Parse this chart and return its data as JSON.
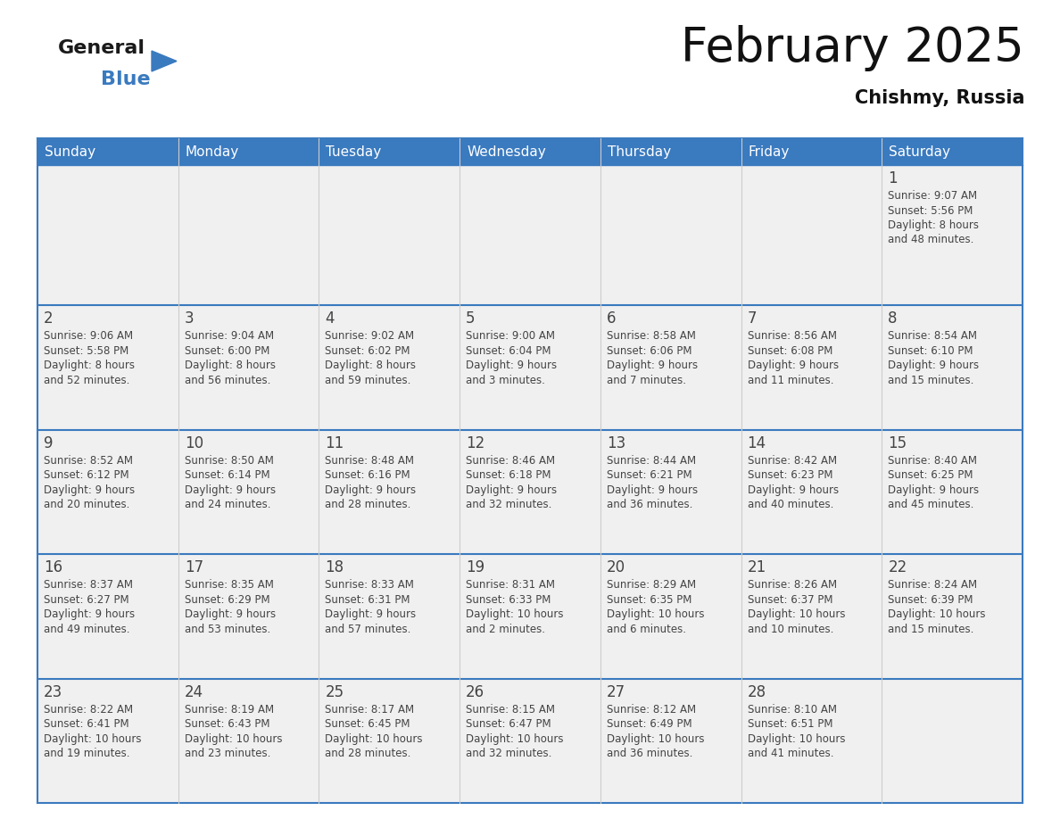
{
  "title": "February 2025",
  "subtitle": "Chishmy, Russia",
  "header_color": "#3a7abf",
  "header_text_color": "#ffffff",
  "cell_bg_color": "#f2f2f2",
  "cell_alt_bg": "#ffffff",
  "text_color": "#333333",
  "border_color": "#3a7abf",
  "days_of_week": [
    "Sunday",
    "Monday",
    "Tuesday",
    "Wednesday",
    "Thursday",
    "Friday",
    "Saturday"
  ],
  "weeks": [
    [
      {
        "day": null,
        "info": null
      },
      {
        "day": null,
        "info": null
      },
      {
        "day": null,
        "info": null
      },
      {
        "day": null,
        "info": null
      },
      {
        "day": null,
        "info": null
      },
      {
        "day": null,
        "info": null
      },
      {
        "day": 1,
        "info": "Sunrise: 9:07 AM\nSunset: 5:56 PM\nDaylight: 8 hours\nand 48 minutes."
      }
    ],
    [
      {
        "day": 2,
        "info": "Sunrise: 9:06 AM\nSunset: 5:58 PM\nDaylight: 8 hours\nand 52 minutes."
      },
      {
        "day": 3,
        "info": "Sunrise: 9:04 AM\nSunset: 6:00 PM\nDaylight: 8 hours\nand 56 minutes."
      },
      {
        "day": 4,
        "info": "Sunrise: 9:02 AM\nSunset: 6:02 PM\nDaylight: 8 hours\nand 59 minutes."
      },
      {
        "day": 5,
        "info": "Sunrise: 9:00 AM\nSunset: 6:04 PM\nDaylight: 9 hours\nand 3 minutes."
      },
      {
        "day": 6,
        "info": "Sunrise: 8:58 AM\nSunset: 6:06 PM\nDaylight: 9 hours\nand 7 minutes."
      },
      {
        "day": 7,
        "info": "Sunrise: 8:56 AM\nSunset: 6:08 PM\nDaylight: 9 hours\nand 11 minutes."
      },
      {
        "day": 8,
        "info": "Sunrise: 8:54 AM\nSunset: 6:10 PM\nDaylight: 9 hours\nand 15 minutes."
      }
    ],
    [
      {
        "day": 9,
        "info": "Sunrise: 8:52 AM\nSunset: 6:12 PM\nDaylight: 9 hours\nand 20 minutes."
      },
      {
        "day": 10,
        "info": "Sunrise: 8:50 AM\nSunset: 6:14 PM\nDaylight: 9 hours\nand 24 minutes."
      },
      {
        "day": 11,
        "info": "Sunrise: 8:48 AM\nSunset: 6:16 PM\nDaylight: 9 hours\nand 28 minutes."
      },
      {
        "day": 12,
        "info": "Sunrise: 8:46 AM\nSunset: 6:18 PM\nDaylight: 9 hours\nand 32 minutes."
      },
      {
        "day": 13,
        "info": "Sunrise: 8:44 AM\nSunset: 6:21 PM\nDaylight: 9 hours\nand 36 minutes."
      },
      {
        "day": 14,
        "info": "Sunrise: 8:42 AM\nSunset: 6:23 PM\nDaylight: 9 hours\nand 40 minutes."
      },
      {
        "day": 15,
        "info": "Sunrise: 8:40 AM\nSunset: 6:25 PM\nDaylight: 9 hours\nand 45 minutes."
      }
    ],
    [
      {
        "day": 16,
        "info": "Sunrise: 8:37 AM\nSunset: 6:27 PM\nDaylight: 9 hours\nand 49 minutes."
      },
      {
        "day": 17,
        "info": "Sunrise: 8:35 AM\nSunset: 6:29 PM\nDaylight: 9 hours\nand 53 minutes."
      },
      {
        "day": 18,
        "info": "Sunrise: 8:33 AM\nSunset: 6:31 PM\nDaylight: 9 hours\nand 57 minutes."
      },
      {
        "day": 19,
        "info": "Sunrise: 8:31 AM\nSunset: 6:33 PM\nDaylight: 10 hours\nand 2 minutes."
      },
      {
        "day": 20,
        "info": "Sunrise: 8:29 AM\nSunset: 6:35 PM\nDaylight: 10 hours\nand 6 minutes."
      },
      {
        "day": 21,
        "info": "Sunrise: 8:26 AM\nSunset: 6:37 PM\nDaylight: 10 hours\nand 10 minutes."
      },
      {
        "day": 22,
        "info": "Sunrise: 8:24 AM\nSunset: 6:39 PM\nDaylight: 10 hours\nand 15 minutes."
      }
    ],
    [
      {
        "day": 23,
        "info": "Sunrise: 8:22 AM\nSunset: 6:41 PM\nDaylight: 10 hours\nand 19 minutes."
      },
      {
        "day": 24,
        "info": "Sunrise: 8:19 AM\nSunset: 6:43 PM\nDaylight: 10 hours\nand 23 minutes."
      },
      {
        "day": 25,
        "info": "Sunrise: 8:17 AM\nSunset: 6:45 PM\nDaylight: 10 hours\nand 28 minutes."
      },
      {
        "day": 26,
        "info": "Sunrise: 8:15 AM\nSunset: 6:47 PM\nDaylight: 10 hours\nand 32 minutes."
      },
      {
        "day": 27,
        "info": "Sunrise: 8:12 AM\nSunset: 6:49 PM\nDaylight: 10 hours\nand 36 minutes."
      },
      {
        "day": 28,
        "info": "Sunrise: 8:10 AM\nSunset: 6:51 PM\nDaylight: 10 hours\nand 41 minutes."
      },
      {
        "day": null,
        "info": null
      }
    ]
  ],
  "logo_text_general": "General",
  "logo_text_blue": "Blue",
  "logo_color_general": "#1a1a1a",
  "logo_color_blue": "#3a7abf",
  "logo_triangle_color": "#3a7abf"
}
